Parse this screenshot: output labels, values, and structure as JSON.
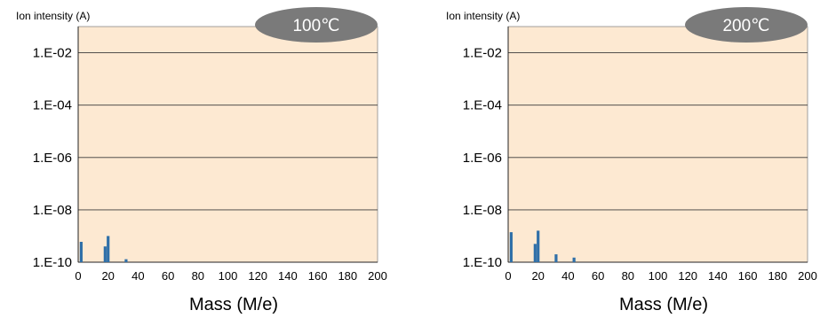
{
  "chart_data": [
    {
      "type": "bar",
      "badge": "100℃",
      "ylabel": "Ion intensity (A)",
      "xlabel": "Mass (M/e)",
      "yscale": "log",
      "ylim": [
        1e-10,
        0.1
      ],
      "xlim": [
        0,
        200
      ],
      "yticks": [
        "1.E-02",
        "1.E-04",
        "1.E-06",
        "1.E-08",
        "1.E-10"
      ],
      "ytick_values": [
        0.01,
        0.0001,
        1e-06,
        1e-08,
        1e-10
      ],
      "xticks": [
        "0",
        "20",
        "40",
        "60",
        "80",
        "100",
        "120",
        "140",
        "160",
        "180",
        "200"
      ],
      "xtick_values": [
        0,
        20,
        40,
        60,
        80,
        100,
        120,
        140,
        160,
        180,
        200
      ],
      "grid": "horizontal",
      "background": "#fde9d2",
      "bar_color": "#2f6fa8",
      "x": [
        2,
        18,
        20,
        32
      ],
      "values": [
        6e-10,
        4e-10,
        1e-09,
        1.3e-10
      ]
    },
    {
      "type": "bar",
      "badge": "200℃",
      "ylabel": "Ion intensity (A)",
      "xlabel": "Mass (M/e)",
      "yscale": "log",
      "ylim": [
        1e-10,
        0.1
      ],
      "xlim": [
        0,
        200
      ],
      "yticks": [
        "1.E-02",
        "1.E-04",
        "1.E-06",
        "1.E-08",
        "1.E-10"
      ],
      "ytick_values": [
        0.01,
        0.0001,
        1e-06,
        1e-08,
        1e-10
      ],
      "xticks": [
        "0",
        "20",
        "40",
        "60",
        "80",
        "100",
        "120",
        "140",
        "160",
        "180",
        "200"
      ],
      "xtick_values": [
        0,
        20,
        40,
        60,
        80,
        100,
        120,
        140,
        160,
        180,
        200
      ],
      "grid": "horizontal",
      "background": "#fde9d2",
      "bar_color": "#2f6fa8",
      "x": [
        2,
        18,
        20,
        32,
        44
      ],
      "values": [
        1.4e-09,
        5e-10,
        1.6e-09,
        2e-10,
        1.5e-10
      ]
    }
  ],
  "colors": {
    "badge": "#7a7a7a",
    "plot_background": "#fde9d2",
    "bars": "#2f6fa8",
    "gridlines": "#3a3a3a"
  }
}
